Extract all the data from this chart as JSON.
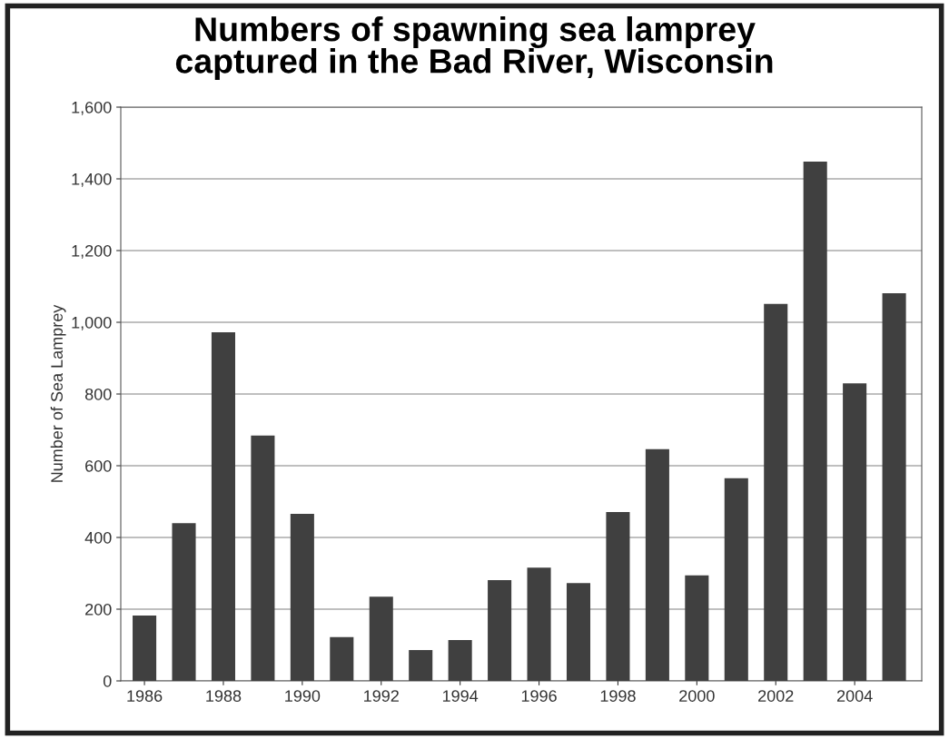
{
  "chart_data": {
    "type": "bar",
    "title": "Numbers of spawning sea lamprey\ncaptured in the Bad River, Wisconsin",
    "ylabel": "Number of Sea Lamprey",
    "x": [
      1986,
      1987,
      1988,
      1989,
      1990,
      1991,
      1992,
      1993,
      1994,
      1995,
      1996,
      1997,
      1998,
      1999,
      2000,
      2001,
      2002,
      2003,
      2004,
      2005
    ],
    "values": [
      182,
      440,
      972,
      684,
      466,
      122,
      235,
      86,
      114,
      281,
      316,
      273,
      471,
      646,
      294,
      565,
      1051,
      1448,
      830,
      1081
    ],
    "color": "#404040",
    "xlim": [
      1985.4,
      2005.7
    ],
    "xticks": [
      1986,
      1988,
      1990,
      1992,
      1994,
      1996,
      1998,
      2000,
      2002,
      2004
    ],
    "ylim": [
      0,
      1600
    ],
    "yticks": [
      {
        "value": 0,
        "label": "0"
      },
      {
        "value": 200,
        "label": "200"
      },
      {
        "value": 400,
        "label": "400"
      },
      {
        "value": 600,
        "label": "600"
      },
      {
        "value": 800,
        "label": "800"
      },
      {
        "value": 1000,
        "label": "1,000"
      },
      {
        "value": 1200,
        "label": "1,200"
      },
      {
        "value": 1400,
        "label": "1,400"
      },
      {
        "value": 1600,
        "label": "1,600"
      }
    ],
    "grid": "y",
    "legend": false
  }
}
